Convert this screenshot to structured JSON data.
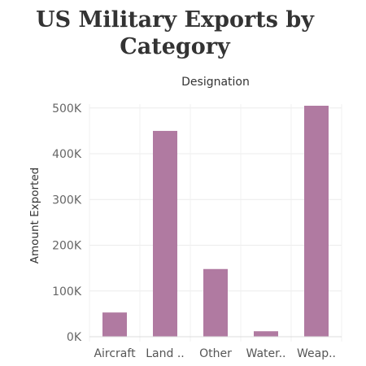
{
  "title_line1": "US Military Exports by",
  "title_line2": "Category",
  "chart_data": {
    "type": "bar",
    "title": "US Military Exports by Category",
    "column_header": "Designation",
    "ylabel": "Amount Exported",
    "xlabel": "",
    "categories": [
      "Aircraft",
      "Land ..",
      "Other",
      "Water..",
      "Weap.."
    ],
    "values": [
      53000,
      450000,
      148000,
      12000,
      505000
    ],
    "ylim": [
      0,
      505000
    ],
    "yticks": [
      0,
      100000,
      200000,
      300000,
      400000,
      500000
    ],
    "ytick_labels": [
      "0K",
      "100K",
      "200K",
      "300K",
      "400K",
      "500K"
    ],
    "bar_color": "#b07aa1",
    "grid": true,
    "legend": "none"
  }
}
